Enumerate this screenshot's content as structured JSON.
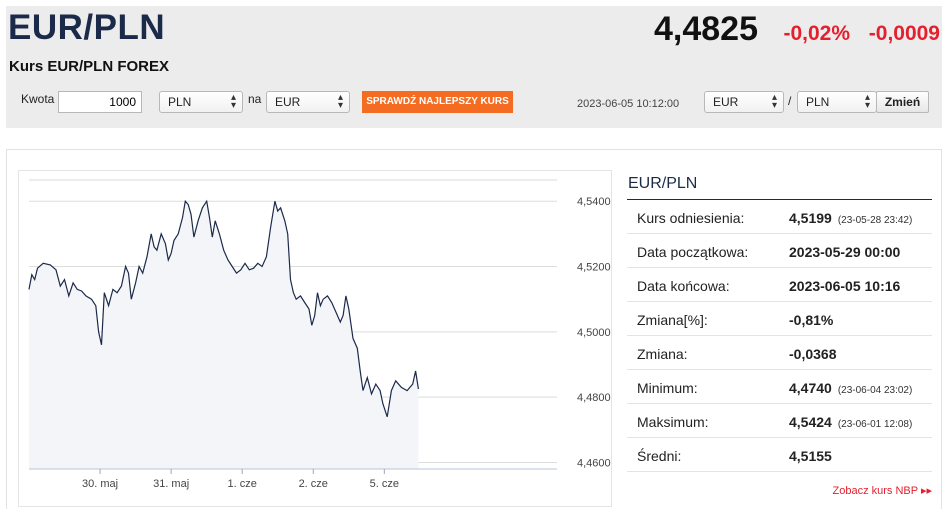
{
  "header": {
    "pair": "EUR/PLN",
    "subtitle": "Kurs EUR/PLN FOREX",
    "price": "4,4825",
    "change_pct": "-0,02%",
    "change_abs": "-0,0009"
  },
  "converter": {
    "amount_label": "Kwota",
    "amount_value": "1000",
    "from_currency": "PLN",
    "to_label": "na",
    "to_currency": "EUR",
    "best_rate_button": "SPRAWDŹ NAJLEPSZY KURS",
    "timestamp": "2023-06-05 10:12:00",
    "pair_base": "EUR",
    "pair_sep": "/",
    "pair_quote": "PLN",
    "change_button": "Zmień"
  },
  "info": {
    "title": "EUR/PLN",
    "rows": [
      {
        "label": "Kurs odniesienia:",
        "value": "4,5199",
        "note": "(23-05-28 23:42)"
      },
      {
        "label": "Data początkowa:",
        "value": "2023-05-29 00:00",
        "note": ""
      },
      {
        "label": "Data końcowa:",
        "value": "2023-06-05 10:16",
        "note": ""
      },
      {
        "label": "Zmiana[%]:",
        "value": "-0,81%",
        "note": ""
      },
      {
        "label": "Zmiana:",
        "value": "-0,0368",
        "note": ""
      },
      {
        "label": "Minimum:",
        "value": "4,4740",
        "note": "(23-06-04 23:02)"
      },
      {
        "label": "Maksimum:",
        "value": "4,5424",
        "note": "(23-06-01 12:08)"
      },
      {
        "label": "Średni:",
        "value": "4,5155",
        "note": ""
      }
    ],
    "nbp_link": "Zobacz kurs NBP ▸▸"
  },
  "colors": {
    "accent_orange": "#f36c21",
    "negative_red": "#e5202e",
    "line_navy": "#1c2a4a",
    "area_fill": "#f3f5f8"
  },
  "chart_data": {
    "type": "line",
    "title": "",
    "xlabel": "",
    "ylabel": "",
    "grid": true,
    "x_range": [
      0,
      7.43
    ],
    "ylim": [
      4.458,
      4.5465
    ],
    "y_ticks": [
      4.46,
      4.48,
      4.5,
      4.52,
      4.54
    ],
    "y_tick_labels": [
      "4,4600",
      "4,4800",
      "4,5000",
      "4,5200",
      "4,5400"
    ],
    "x_ticks": [
      1,
      2,
      3,
      4,
      5
    ],
    "x_tick_labels": [
      "30. maj",
      "31. maj",
      "1. cze",
      "2. cze",
      "5. cze"
    ],
    "series": [
      {
        "values": [
          [
            0.0,
            4.513
          ],
          [
            0.04,
            4.5175
          ],
          [
            0.08,
            4.516
          ],
          [
            0.12,
            4.5195
          ],
          [
            0.2,
            4.521
          ],
          [
            0.3,
            4.5205
          ],
          [
            0.38,
            4.519
          ],
          [
            0.44,
            4.514
          ],
          [
            0.5,
            4.516
          ],
          [
            0.56,
            4.511
          ],
          [
            0.62,
            4.515
          ],
          [
            0.68,
            4.513
          ],
          [
            0.74,
            4.5125
          ],
          [
            0.8,
            4.511
          ],
          [
            0.88,
            4.51
          ],
          [
            0.94,
            4.508
          ],
          [
            0.98,
            4.5
          ],
          [
            1.02,
            4.496
          ],
          [
            1.06,
            4.512
          ],
          [
            1.12,
            4.508
          ],
          [
            1.18,
            4.513
          ],
          [
            1.24,
            4.512
          ],
          [
            1.3,
            4.514
          ],
          [
            1.36,
            4.52
          ],
          [
            1.4,
            4.518
          ],
          [
            1.44,
            4.51
          ],
          [
            1.5,
            4.515
          ],
          [
            1.55,
            4.52
          ],
          [
            1.6,
            4.518
          ],
          [
            1.66,
            4.523
          ],
          [
            1.72,
            4.53
          ],
          [
            1.76,
            4.526
          ],
          [
            1.8,
            4.525
          ],
          [
            1.86,
            4.53
          ],
          [
            1.92,
            4.527
          ],
          [
            1.96,
            4.522
          ],
          [
            2.0,
            4.524
          ],
          [
            2.04,
            4.528
          ],
          [
            2.1,
            4.53
          ],
          [
            2.16,
            4.535
          ],
          [
            2.2,
            4.54
          ],
          [
            2.24,
            4.539
          ],
          [
            2.28,
            4.536
          ],
          [
            2.32,
            4.529
          ],
          [
            2.38,
            4.534
          ],
          [
            2.44,
            4.538
          ],
          [
            2.5,
            4.54
          ],
          [
            2.54,
            4.535
          ],
          [
            2.58,
            4.529
          ],
          [
            2.62,
            4.534
          ],
          [
            2.68,
            4.53
          ],
          [
            2.74,
            4.525
          ],
          [
            2.8,
            4.522
          ],
          [
            2.86,
            4.52
          ],
          [
            2.92,
            4.518
          ],
          [
            2.98,
            4.519
          ],
          [
            3.04,
            4.521
          ],
          [
            3.1,
            4.519
          ],
          [
            3.16,
            4.5195
          ],
          [
            3.22,
            4.521
          ],
          [
            3.28,
            4.52
          ],
          [
            3.34,
            4.523
          ],
          [
            3.4,
            4.532
          ],
          [
            3.46,
            4.54
          ],
          [
            3.5,
            4.537
          ],
          [
            3.54,
            4.538
          ],
          [
            3.6,
            4.534
          ],
          [
            3.64,
            4.53
          ],
          [
            3.68,
            4.516
          ],
          [
            3.72,
            4.512
          ],
          [
            3.76,
            4.51
          ],
          [
            3.82,
            4.511
          ],
          [
            3.88,
            4.509
          ],
          [
            3.94,
            4.507
          ],
          [
            3.98,
            4.502
          ],
          [
            4.02,
            4.505
          ],
          [
            4.06,
            4.512
          ],
          [
            4.1,
            4.508
          ],
          [
            4.14,
            4.51
          ],
          [
            4.2,
            4.511
          ],
          [
            4.26,
            4.509
          ],
          [
            4.32,
            4.506
          ],
          [
            4.38,
            4.503
          ],
          [
            4.42,
            4.505
          ],
          [
            4.46,
            4.511
          ],
          [
            4.5,
            4.507
          ],
          [
            4.56,
            4.498
          ],
          [
            4.62,
            4.495
          ],
          [
            4.66,
            4.488
          ],
          [
            4.7,
            4.482
          ],
          [
            4.76,
            4.486
          ],
          [
            4.82,
            4.481
          ],
          [
            4.88,
            4.484
          ],
          [
            4.94,
            4.482
          ],
          [
            4.98,
            4.478
          ],
          [
            5.04,
            4.474
          ],
          [
            5.1,
            4.482
          ],
          [
            5.16,
            4.485
          ],
          [
            5.24,
            4.483
          ],
          [
            5.32,
            4.482
          ],
          [
            5.4,
            4.484
          ],
          [
            5.44,
            4.488
          ],
          [
            5.48,
            4.4825
          ]
        ]
      }
    ]
  }
}
